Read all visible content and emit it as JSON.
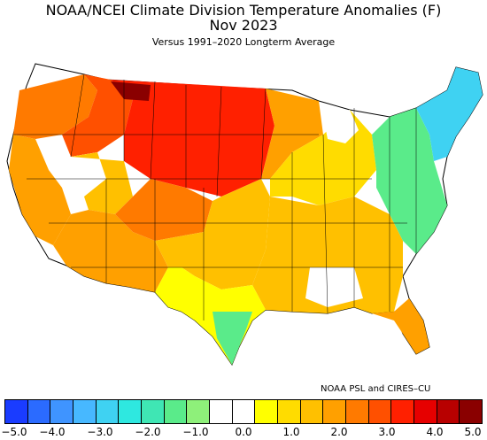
{
  "title": "NOAA/NCEI Climate Division Temperature Anomalies (F)",
  "period": "Nov 2023",
  "subtitle": "Versus 1991–2020 Longterm Average",
  "credit": "NOAA PSL and CIRES–CU",
  "legend": {
    "colors": [
      "#1a3cff",
      "#2b6bff",
      "#3f94ff",
      "#47b8ff",
      "#3fd2f2",
      "#2ee8e0",
      "#3fe6b4",
      "#5aeb8a",
      "#8ef07a",
      "#ffffff",
      "#ffffff",
      "#ffff00",
      "#ffdc00",
      "#ffc000",
      "#ffa000",
      "#ff7a00",
      "#ff5000",
      "#ff2000",
      "#e60000",
      "#b80000",
      "#8a0000"
    ],
    "ticks": [
      "−5.0",
      "−4.0",
      "−3.0",
      "−2.0",
      "−1.0",
      "0.0",
      "1.0",
      "2.0",
      "3.0",
      "4.0",
      "5.0"
    ]
  },
  "regions": [
    {
      "name": "northern-plains",
      "color": "#ff2000"
    },
    {
      "name": "montana-core",
      "color": "#8a0000"
    },
    {
      "name": "northern-rockies",
      "color": "#ff5000"
    },
    {
      "name": "pacific-northwest",
      "color": "#ff7a00"
    },
    {
      "name": "california",
      "color": "#ffa000"
    },
    {
      "name": "southwest",
      "color": "#ffa000"
    },
    {
      "name": "great-basin",
      "color": "#ffdc00"
    },
    {
      "name": "southern-plains",
      "color": "#ffc000"
    },
    {
      "name": "midwest",
      "color": "#ffdc00"
    },
    {
      "name": "southeast",
      "color": "#ffc000"
    },
    {
      "name": "florida",
      "color": "#ffa000"
    },
    {
      "name": "new-england",
      "color": "#3fd2f2"
    },
    {
      "name": "mid-atlantic",
      "color": "#5aeb8a"
    },
    {
      "name": "south-texas",
      "color": "#5aeb8a"
    }
  ]
}
